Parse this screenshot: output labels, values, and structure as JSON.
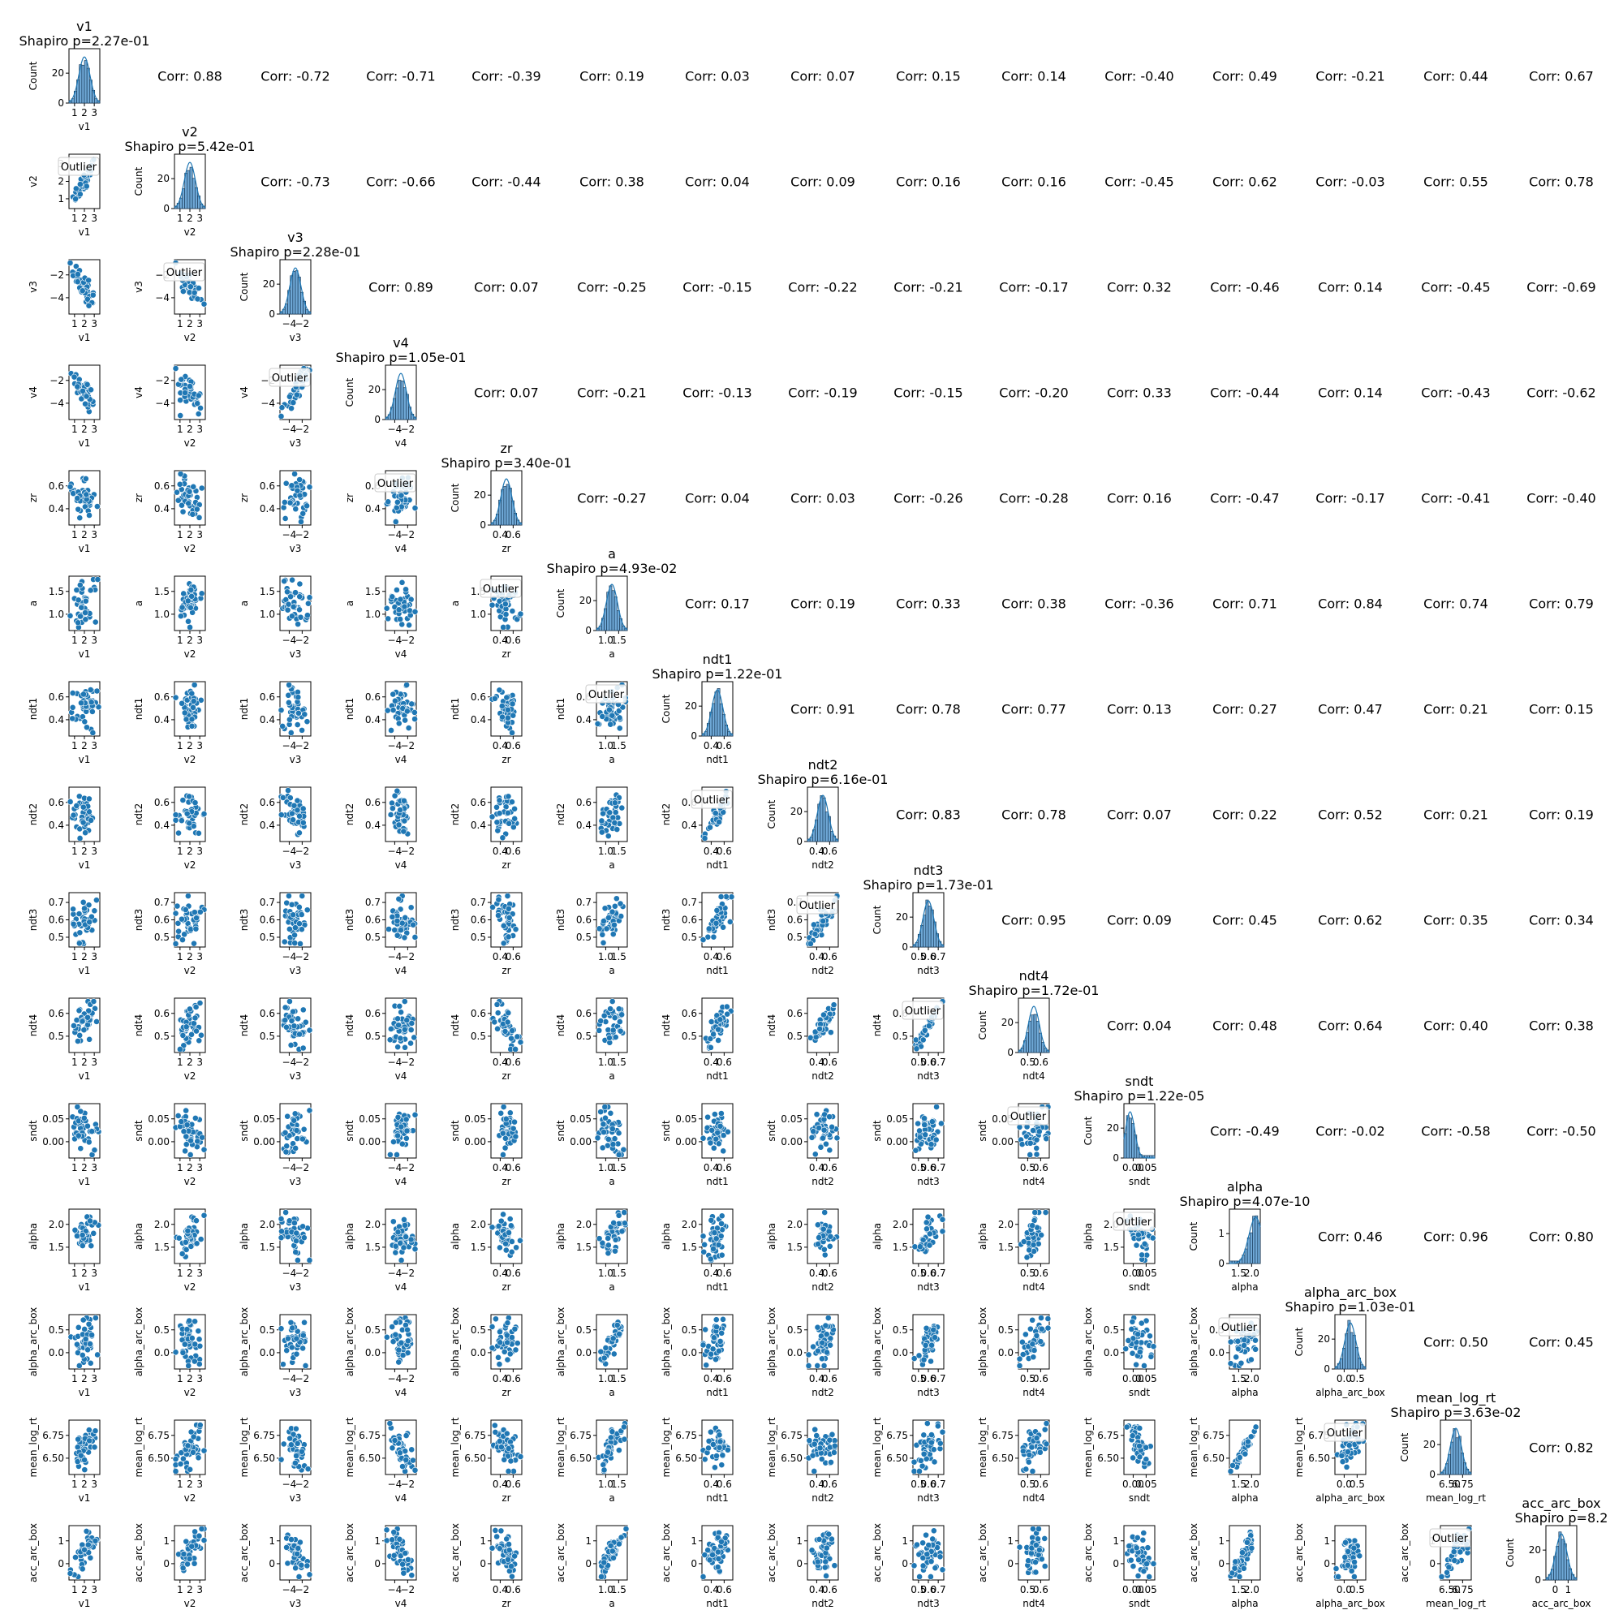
{
  "chart_data": {
    "type": "pairplot",
    "variables": [
      "v1",
      "v2",
      "v3",
      "v4",
      "zr",
      "a",
      "ndt1",
      "ndt2",
      "ndt3",
      "ndt4",
      "sndt",
      "alpha",
      "alpha_arc_box",
      "mean_log_rt",
      "acc_arc_box"
    ],
    "diag_titles": [
      "Shapiro p=2.27e-01",
      "Shapiro p=5.42e-01",
      "Shapiro p=2.28e-01",
      "Shapiro p=1.05e-01",
      "Shapiro p=3.40e-01",
      "Shapiro p=4.93e-02",
      "Shapiro p=1.22e-01",
      "Shapiro p=6.16e-01",
      "Shapiro p=1.73e-01",
      "Shapiro p=1.72e-01",
      "Shapiro p=1.22e-05",
      "Shapiro p=4.07e-10",
      "Shapiro p=1.03e-01",
      "Shapiro p=3.63e-02",
      "Shapiro p=8.2"
    ],
    "diag_ylabel": "Count",
    "diag_yticks": [
      [
        "0",
        "20"
      ],
      [
        "0",
        "20"
      ],
      [
        "0",
        "20"
      ],
      [
        "0",
        "20"
      ],
      [
        "0",
        "20"
      ],
      [
        "0",
        "20"
      ],
      [
        "0",
        "20"
      ],
      [
        "0",
        "20"
      ],
      [
        "0",
        "20"
      ],
      [
        "0",
        "20"
      ],
      [
        "0",
        "20"
      ],
      [
        "0",
        "1"
      ],
      [
        "0",
        "20"
      ],
      [
        "0",
        "20"
      ],
      [
        "0",
        "20"
      ]
    ],
    "legend_label": "Outlier",
    "x_tick_labels": [
      [
        "1",
        "2",
        "3"
      ],
      [
        "1",
        "2",
        "3"
      ],
      [
        "−4",
        "−2"
      ],
      [
        "−4",
        "−2"
      ],
      [
        "0.4",
        "0.6"
      ],
      [
        "1.0",
        "1.5"
      ],
      [
        "0.4",
        "0.6"
      ],
      [
        "0.4",
        "0.6"
      ],
      [
        "0.5",
        "0.6",
        "0.7"
      ],
      [
        "0.5",
        "0.6"
      ],
      [
        "0.00",
        "0.05"
      ],
      [
        "1.5",
        "2.0"
      ],
      [
        "0.0",
        "0.5"
      ],
      [
        "6.50",
        "6.75"
      ],
      [
        "0",
        "1"
      ]
    ],
    "y_tick_labels": [
      [],
      [
        "1",
        "2",
        "3"
      ],
      [
        "−4",
        "−2"
      ],
      [
        "−4",
        "−2"
      ],
      [
        "0.4",
        "0.6"
      ],
      [
        "1.0",
        "1.5"
      ],
      [
        "0.4",
        "0.6"
      ],
      [
        "0.4",
        "0.6"
      ],
      [
        "0.5",
        "0.6",
        "0.7"
      ],
      [
        "0.5",
        "0.6"
      ],
      [
        "0.00",
        "0.05"
      ],
      [
        "1.5",
        "2.0"
      ],
      [
        "0.0",
        "0.5"
      ],
      [
        "6.50",
        "6.75"
      ],
      [
        "0",
        "1"
      ]
    ],
    "correlations": [
      [
        null,
        0.88,
        -0.72,
        -0.71,
        -0.39,
        0.19,
        0.03,
        0.07,
        0.15,
        0.14,
        -0.4,
        0.49,
        -0.21,
        0.44,
        0.67
      ],
      [
        null,
        null,
        -0.73,
        -0.66,
        -0.44,
        0.38,
        0.04,
        0.09,
        0.16,
        0.16,
        -0.45,
        0.62,
        -0.03,
        0.55,
        0.78
      ],
      [
        null,
        null,
        null,
        0.89,
        0.07,
        -0.25,
        -0.15,
        -0.22,
        -0.21,
        -0.17,
        0.32,
        -0.46,
        0.14,
        -0.45,
        -0.69
      ],
      [
        null,
        null,
        null,
        null,
        0.07,
        -0.21,
        -0.13,
        -0.19,
        -0.15,
        -0.2,
        0.33,
        -0.44,
        0.14,
        -0.43,
        -0.62
      ],
      [
        null,
        null,
        null,
        null,
        null,
        -0.27,
        0.04,
        0.03,
        -0.26,
        -0.28,
        0.16,
        -0.47,
        -0.17,
        -0.41,
        -0.4
      ],
      [
        null,
        null,
        null,
        null,
        null,
        null,
        0.17,
        0.19,
        0.33,
        0.38,
        -0.36,
        0.71,
        0.84,
        0.74,
        0.79
      ],
      [
        null,
        null,
        null,
        null,
        null,
        null,
        null,
        0.91,
        0.78,
        0.77,
        0.13,
        0.27,
        0.47,
        0.21,
        0.15
      ],
      [
        null,
        null,
        null,
        null,
        null,
        null,
        null,
        null,
        0.83,
        0.78,
        0.07,
        0.22,
        0.52,
        0.21,
        0.19
      ],
      [
        null,
        null,
        null,
        null,
        null,
        null,
        null,
        null,
        null,
        0.95,
        0.09,
        0.45,
        0.62,
        0.35,
        0.34
      ],
      [
        null,
        null,
        null,
        null,
        null,
        null,
        null,
        null,
        null,
        null,
        0.04,
        0.48,
        0.64,
        0.4,
        0.38
      ],
      [
        null,
        null,
        null,
        null,
        null,
        null,
        null,
        null,
        null,
        null,
        null,
        -0.49,
        -0.02,
        -0.58,
        -0.5
      ],
      [
        null,
        null,
        null,
        null,
        null,
        null,
        null,
        null,
        null,
        null,
        null,
        null,
        0.46,
        0.96,
        0.8
      ],
      [
        null,
        null,
        null,
        null,
        null,
        null,
        null,
        null,
        null,
        null,
        null,
        null,
        null,
        0.5,
        0.45
      ],
      [
        null,
        null,
        null,
        null,
        null,
        null,
        null,
        null,
        null,
        null,
        null,
        null,
        null,
        null,
        0.82
      ],
      [
        null,
        null,
        null,
        null,
        null,
        null,
        null,
        null,
        null,
        null,
        null,
        null,
        null,
        null,
        null
      ]
    ],
    "corr_prefix": "Corr: ",
    "colors": {
      "points": "#1f77b4",
      "hist_fill": "#6fa8d6",
      "hist_edge": "#1a3d5c"
    }
  }
}
